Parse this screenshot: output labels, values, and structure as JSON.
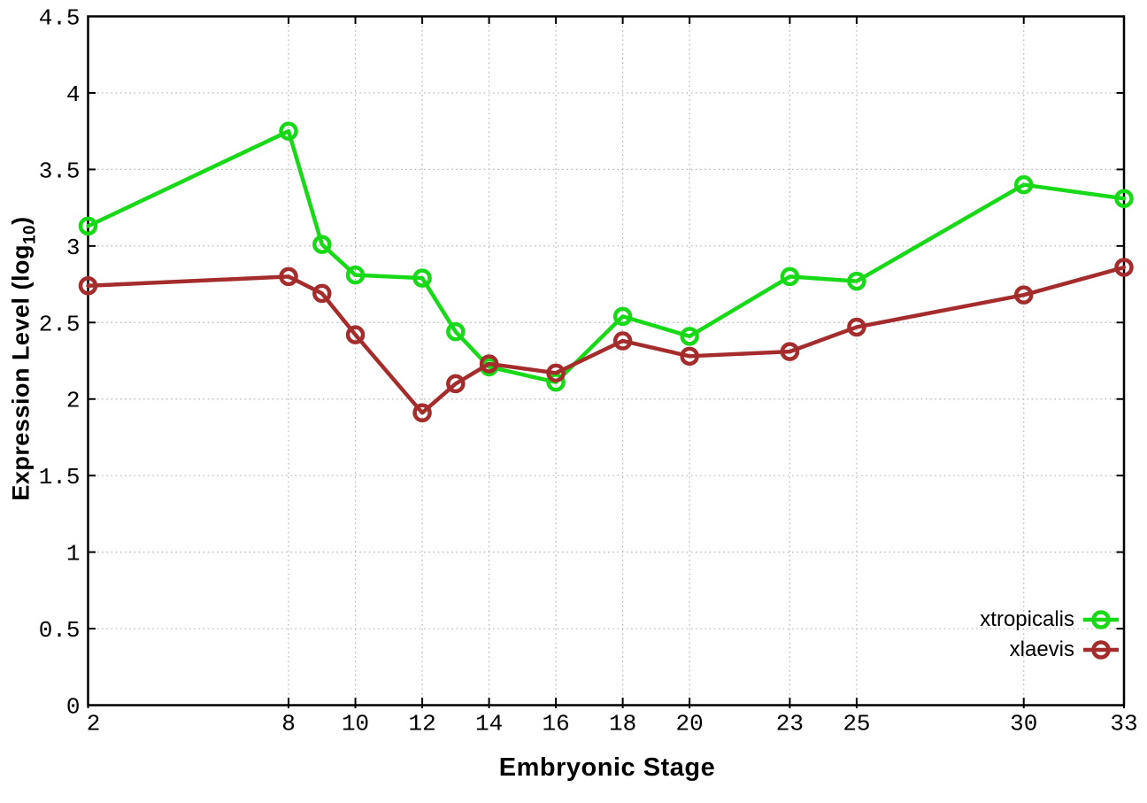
{
  "chart_data": {
    "type": "line",
    "title": "",
    "xlabel": "Embryonic Stage",
    "ylabel": "Expression Level (log10)",
    "ylabel_parts": {
      "main": "Expression Level (log",
      "sub": "10",
      "close": ")"
    },
    "x": [
      2,
      8,
      9,
      10,
      12,
      13,
      14,
      16,
      18,
      20,
      23,
      25,
      30,
      33
    ],
    "series": [
      {
        "name": "xtropicalis",
        "color": "#17d917",
        "marker": "open-circle",
        "values": [
          3.13,
          3.75,
          3.01,
          2.81,
          2.79,
          2.44,
          2.21,
          2.11,
          2.54,
          2.41,
          2.8,
          2.77,
          3.4,
          3.31
        ]
      },
      {
        "name": "xlaevis",
        "color": "#a42c2c",
        "marker": "open-circle",
        "values": [
          2.74,
          2.8,
          2.69,
          2.42,
          1.91,
          2.1,
          2.23,
          2.17,
          2.38,
          2.28,
          2.31,
          2.47,
          2.68,
          2.86
        ]
      }
    ],
    "xlim": [
      2,
      33
    ],
    "ylim": [
      0,
      4.5
    ],
    "xticks": [
      2,
      8,
      10,
      12,
      14,
      16,
      18,
      20,
      23,
      25,
      30,
      33
    ],
    "xtick_labels": [
      "2",
      "8",
      "10",
      "12",
      "14",
      "16",
      "18",
      "20",
      "23",
      "25",
      "30",
      "33"
    ],
    "yticks": [
      0,
      0.5,
      1,
      1.5,
      2,
      2.5,
      3,
      3.5,
      4,
      4.5
    ],
    "ytick_labels": [
      "0",
      "0.5",
      "1",
      "1.5",
      "2",
      "2.5",
      "3",
      "3.5",
      "4",
      "4.5"
    ],
    "grid": true,
    "grid_style": "dotted",
    "grid_color": "#b5b5b5",
    "axis_color": "#000000",
    "legend_position": "bottom-right",
    "legend_entries": [
      "xtropicalis",
      "xlaevis"
    ]
  }
}
